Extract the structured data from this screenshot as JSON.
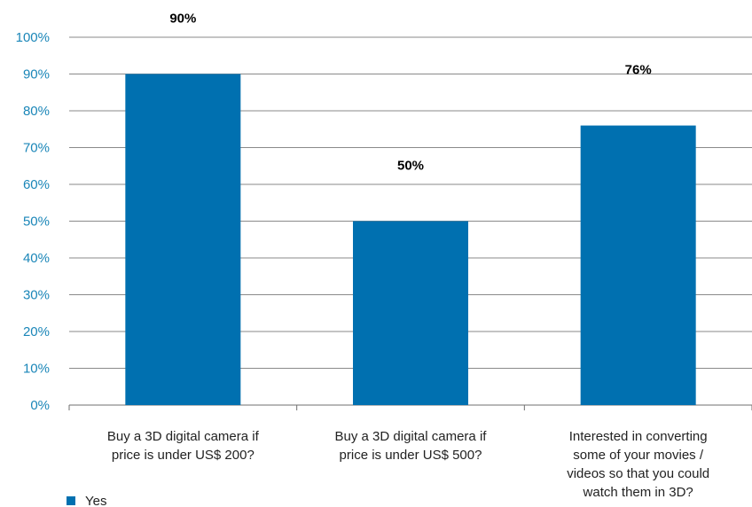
{
  "chart_data": {
    "type": "bar",
    "categories": [
      [
        "Buy a 3D digital camera if",
        "price is under US$ 200?"
      ],
      [
        "Buy a 3D digital camera if",
        "price is under US$ 500?"
      ],
      [
        "Interested in converting",
        "some of your movies /",
        "videos so that you could",
        "watch them in 3D?"
      ]
    ],
    "series": [
      {
        "name": "Yes",
        "values": [
          90,
          50,
          76
        ],
        "data_labels": [
          "90%",
          "50%",
          "76%"
        ]
      }
    ],
    "ylim": [
      0,
      100
    ],
    "yticks": [
      0,
      10,
      20,
      30,
      40,
      50,
      60,
      70,
      80,
      90,
      100
    ],
    "ytick_labels": [
      "0%",
      "10%",
      "20%",
      "30%",
      "40%",
      "50%",
      "60%",
      "70%",
      "80%",
      "90%",
      "100%"
    ],
    "grid": true,
    "legend_position": "bottom-left",
    "colors": {
      "bar": "#0070b0",
      "tick_label": "#1a86b8",
      "grid": "#8a8a8a"
    }
  }
}
